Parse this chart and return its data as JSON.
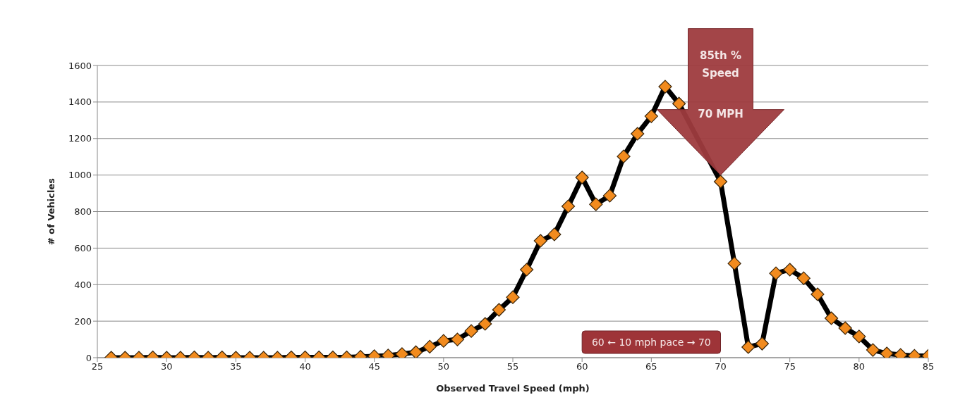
{
  "chart_data": {
    "type": "line",
    "xlabel": "Observed Travel Speed (mph)",
    "ylabel": "# of Vehicles",
    "x": [
      26,
      27,
      28,
      29,
      30,
      31,
      32,
      33,
      34,
      35,
      36,
      37,
      38,
      39,
      40,
      41,
      42,
      43,
      44,
      45,
      46,
      47,
      48,
      49,
      50,
      51,
      52,
      53,
      54,
      55,
      56,
      57,
      58,
      59,
      60,
      61,
      62,
      63,
      64,
      65,
      66,
      67,
      68,
      69,
      70,
      71,
      72,
      73,
      74,
      75,
      76,
      77,
      78,
      79,
      80,
      81,
      82,
      83,
      84,
      85
    ],
    "series": [
      {
        "color": "#f28b1e",
        "values": [
          0,
          0,
          0,
          2,
          0,
          0,
          2,
          0,
          2,
          0,
          0,
          0,
          0,
          2,
          2,
          2,
          2,
          2,
          5,
          8,
          12,
          20,
          30,
          60,
          92,
          100,
          146,
          185,
          262,
          331,
          482,
          640,
          675,
          829,
          987,
          840,
          887,
          1102,
          1226,
          1322,
          1484,
          1391,
          null,
          null,
          964,
          516,
          58,
          77,
          462,
          482,
          435,
          347,
          216,
          162,
          116,
          42,
          23,
          15,
          10,
          10
        ]
      }
    ],
    "xlim": [
      25,
      85
    ],
    "xticks": [
      25,
      30,
      35,
      40,
      45,
      50,
      55,
      60,
      65,
      70,
      75,
      80,
      85
    ],
    "ylim": [
      0,
      1600
    ],
    "yticks": [
      0,
      200,
      400,
      600,
      800,
      1000,
      1200,
      1400,
      1600
    ],
    "grid": "y",
    "marker": "diamond",
    "line_style": "solid",
    "legend": false,
    "annotations": [
      "85th % Speed",
      "70 MPH",
      "60 ← 10 mph pace → 70"
    ]
  }
}
